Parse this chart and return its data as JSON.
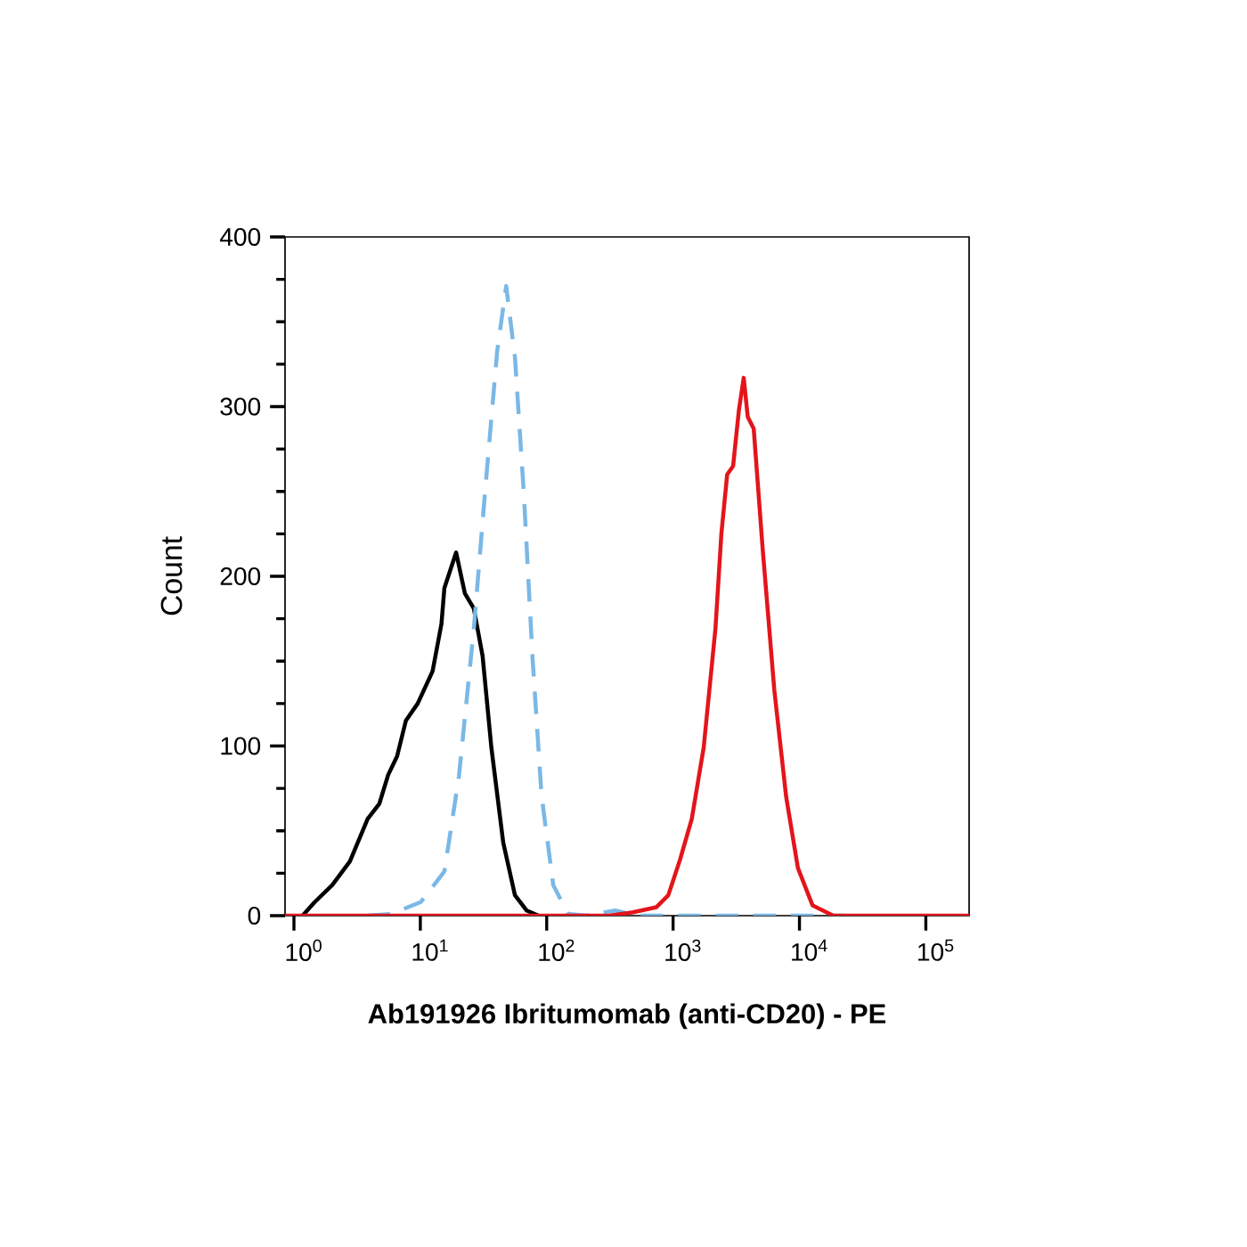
{
  "chart_data": {
    "type": "line",
    "xlabel": "Ab191926 Ibritumomab (anti-CD20) - PE",
    "ylabel": "Count",
    "log": "x",
    "grid": false,
    "marker": "none",
    "xlim": [
      0.85,
      220000
    ],
    "ylim": [
      0,
      400
    ],
    "xticks": [
      {
        "value": 1,
        "label": "10$^{0}$"
      },
      {
        "value": 10,
        "label": "10$^{1}$"
      },
      {
        "value": 100,
        "label": "10$^{2}$"
      },
      {
        "value": 1000,
        "label": "10$^{3}$"
      },
      {
        "value": 10000,
        "label": "10$^{4}$"
      },
      {
        "value": 100000,
        "label": "10$^{5}$"
      }
    ],
    "yticks": [
      0,
      100,
      200,
      300,
      400
    ],
    "series": [
      {
        "color": "#000000",
        "line_style": "solid",
        "x": [
          1.17,
          1.46,
          2.01,
          2.77,
          3.83,
          4.74,
          5.57,
          6.55,
          7.69,
          9.53,
          12.5,
          14.7,
          15.5,
          19.2,
          22.5,
          26.5,
          31.1,
          36.5,
          45.3,
          56.1,
          69.5,
          86.3
        ],
        "values": [
          0,
          8,
          18,
          32,
          57,
          66,
          83,
          94,
          115,
          125,
          144,
          172,
          193,
          214,
          190,
          181,
          153,
          99,
          43,
          12,
          3,
          0
        ]
      },
      {
        "color": "#7ab8e6",
        "line_style": "dashed",
        "x": [
          3.83,
          5.89,
          10.07,
          15.5,
          20.2,
          26.5,
          32.8,
          40.6,
          47.8,
          56.1,
          65.9,
          77.4,
          91.0,
          112.7,
          147.6,
          203.7,
          348,
          536,
          22960
        ],
        "values": [
          0,
          1,
          8,
          26,
          82,
          169,
          253,
          333,
          371,
          329,
          249,
          151,
          71,
          18,
          1,
          0,
          3,
          0,
          0
        ]
      },
      {
        "color": "#e3151b",
        "line_style": "solid",
        "x": [
          0.85,
          313,
          481,
          738,
          916,
          1135,
          1406,
          1746,
          2163,
          2410,
          2679,
          2985,
          3319,
          3622,
          3899,
          4345,
          5105,
          6324,
          7852,
          9727,
          12710,
          18530,
          220000
        ],
        "values": [
          0,
          0,
          2,
          5,
          12,
          33,
          57,
          99,
          169,
          225,
          260,
          265,
          298,
          317,
          294,
          287,
          217,
          133,
          70,
          28,
          6,
          0,
          0
        ]
      }
    ]
  }
}
